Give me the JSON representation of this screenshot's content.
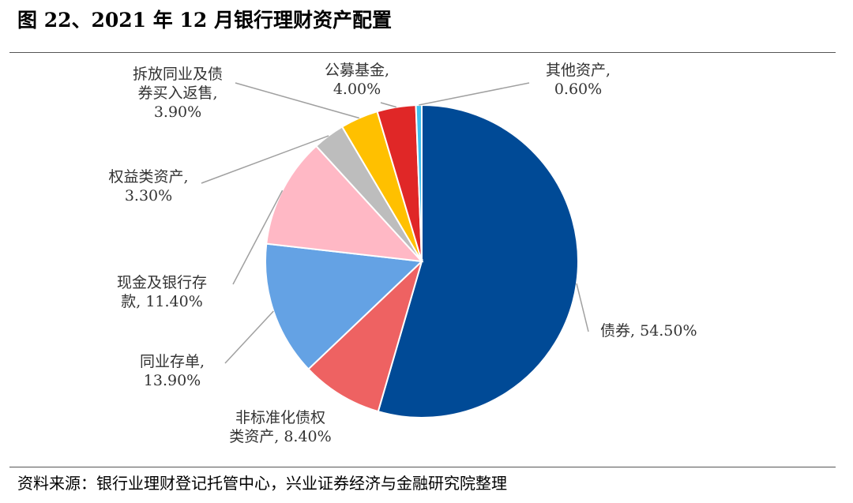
{
  "title": "图 22、2021 年 12 月银行理财资产配置",
  "source": "资料来源：银行业理财登记托管中心，兴业证券经济与金融研究院整理",
  "chart_data": {
    "type": "pie",
    "title": "图 22、2021 年 12 月银行理财资产配置",
    "unit": "%",
    "slices": [
      {
        "name": "债券",
        "value": 54.5,
        "color": "#004a96",
        "label_lines": [
          "债券, 54.50%"
        ]
      },
      {
        "name": "非标准化债权类资产",
        "value": 8.4,
        "color": "#ee6262",
        "label_lines": [
          "非标准化债权",
          "类资产, 8.40%"
        ]
      },
      {
        "name": "同业存单",
        "value": 13.9,
        "color": "#64a2e4",
        "label_lines": [
          "同业存单,",
          "13.90%"
        ]
      },
      {
        "name": "现金及银行存款",
        "value": 11.4,
        "color": "#ffb8c5",
        "label_lines": [
          "现金及银行存",
          "款, 11.40%"
        ]
      },
      {
        "name": "权益类资产",
        "value": 3.3,
        "color": "#bdbdbd",
        "label_lines": [
          "权益类资产,",
          "3.30%"
        ]
      },
      {
        "name": "拆放同业及债券买入返售",
        "value": 3.9,
        "color": "#ffc000",
        "label_lines": [
          "拆放同业及债",
          "券买入返售,",
          "3.90%"
        ]
      },
      {
        "name": "公募基金",
        "value": 4.0,
        "color": "#e02727",
        "label_lines": [
          "公募基金,",
          "4.00%"
        ]
      },
      {
        "name": "其他资产",
        "value": 0.6,
        "color": "#40c0ee",
        "label_lines": [
          "其他资产,",
          "0.60%"
        ]
      }
    ]
  }
}
